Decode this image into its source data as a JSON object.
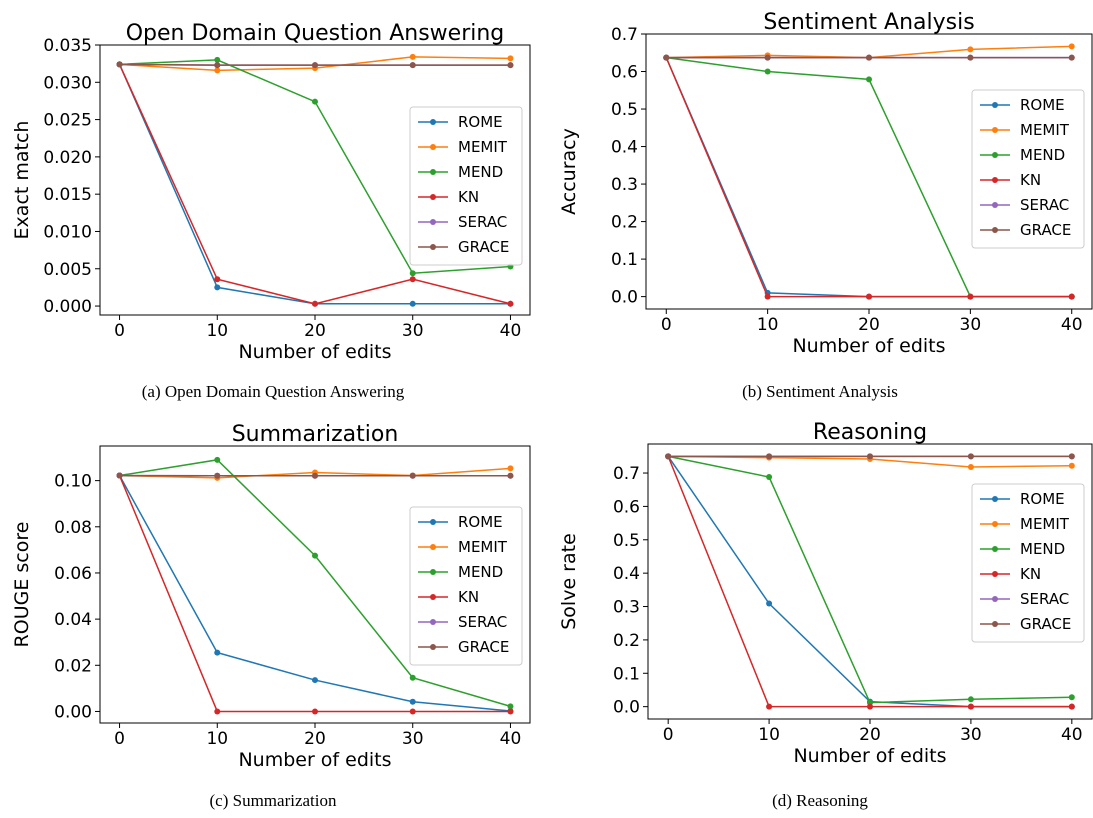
{
  "colors": {
    "ROME": "#1f77b4",
    "MEMIT": "#ff7f0e",
    "MEND": "#2ca02c",
    "KN": "#d62728",
    "SERAC": "#9467bd",
    "GRACE": "#8c564b"
  },
  "chart_data": [
    {
      "type": "line",
      "title": "Open Domain Question Answering",
      "caption": "(a) Open Domain Question Answering",
      "xlabel": "Number of edits",
      "ylabel": "Exact match",
      "x": [
        0,
        10,
        20,
        30,
        40
      ],
      "xticks": [
        "0",
        "10",
        "20",
        "30",
        "40"
      ],
      "yticks": [
        "0.000",
        "0.005",
        "0.010",
        "0.015",
        "0.020",
        "0.025",
        "0.030",
        "0.035"
      ],
      "ytick_values": [
        0,
        0.005,
        0.01,
        0.015,
        0.02,
        0.025,
        0.03,
        0.035
      ],
      "xlim": [
        -2,
        42
      ],
      "ylim": [
        -0.0012,
        0.035
      ],
      "legend": "center-right",
      "series": [
        {
          "name": "ROME",
          "values": [
            0.0324,
            0.0025,
            0.0003,
            0.0003,
            0.0003
          ]
        },
        {
          "name": "MEMIT",
          "values": [
            0.0324,
            0.0316,
            0.0319,
            0.0334,
            0.0332
          ]
        },
        {
          "name": "MEND",
          "values": [
            0.0324,
            0.033,
            0.0274,
            0.0044,
            0.0053
          ]
        },
        {
          "name": "KN",
          "values": [
            0.0324,
            0.0036,
            0.0003,
            0.0036,
            0.0003
          ]
        },
        {
          "name": "SERAC",
          "values": [
            0.0324,
            0.0323,
            0.0323,
            0.0323,
            0.0323
          ]
        },
        {
          "name": "GRACE",
          "values": [
            0.0324,
            0.0323,
            0.0323,
            0.0323,
            0.0323
          ]
        }
      ]
    },
    {
      "type": "line",
      "title": "Sentiment Analysis",
      "caption": "(b) Sentiment Analysis",
      "xlabel": "Number of edits",
      "ylabel": "Accuracy",
      "x": [
        0,
        10,
        20,
        30,
        40
      ],
      "xticks": [
        "0",
        "10",
        "20",
        "30",
        "40"
      ],
      "yticks": [
        "0.0",
        "0.1",
        "0.2",
        "0.3",
        "0.4",
        "0.5",
        "0.6",
        "0.7"
      ],
      "ytick_values": [
        0,
        0.1,
        0.2,
        0.3,
        0.4,
        0.5,
        0.6,
        0.7
      ],
      "xlim": [
        -2,
        42
      ],
      "ylim": [
        -0.033,
        0.7
      ],
      "legend": "center-right",
      "series": [
        {
          "name": "ROME",
          "values": [
            0.637,
            0.01,
            0.0,
            0.0,
            0.0
          ]
        },
        {
          "name": "MEMIT",
          "values": [
            0.637,
            0.643,
            0.637,
            0.659,
            0.667
          ]
        },
        {
          "name": "MEND",
          "values": [
            0.637,
            0.6,
            0.579,
            0.0,
            0.0
          ]
        },
        {
          "name": "KN",
          "values": [
            0.637,
            0.0,
            0.0,
            0.0,
            0.0
          ]
        },
        {
          "name": "SERAC",
          "values": [
            0.637,
            0.637,
            0.637,
            0.637,
            0.637
          ]
        },
        {
          "name": "GRACE",
          "values": [
            0.637,
            0.637,
            0.637,
            0.637,
            0.637
          ]
        }
      ]
    },
    {
      "type": "line",
      "title": "Summarization",
      "caption": "(c) Summarization",
      "xlabel": "Number of edits",
      "ylabel": "ROUGE score",
      "x": [
        0,
        10,
        20,
        30,
        40
      ],
      "xticks": [
        "0",
        "10",
        "20",
        "30",
        "40"
      ],
      "yticks": [
        "0.00",
        "0.02",
        "0.04",
        "0.06",
        "0.08",
        "0.10"
      ],
      "ytick_values": [
        0,
        0.02,
        0.04,
        0.06,
        0.08,
        0.1
      ],
      "xlim": [
        -2,
        42
      ],
      "ylim": [
        -0.005,
        0.115
      ],
      "legend": "center-right",
      "series": [
        {
          "name": "ROME",
          "values": [
            0.1022,
            0.0255,
            0.0136,
            0.0042,
            0.0002
          ]
        },
        {
          "name": "MEMIT",
          "values": [
            0.1022,
            0.1012,
            0.1035,
            0.1022,
            0.1053
          ]
        },
        {
          "name": "MEND",
          "values": [
            0.1022,
            0.109,
            0.0675,
            0.0146,
            0.0022
          ]
        },
        {
          "name": "KN",
          "values": [
            0.1022,
            0.0,
            0.0,
            0.0,
            0.0
          ]
        },
        {
          "name": "SERAC",
          "values": [
            0.1022,
            0.1021,
            0.1021,
            0.1021,
            0.1021
          ]
        },
        {
          "name": "GRACE",
          "values": [
            0.1022,
            0.1021,
            0.1021,
            0.1021,
            0.1021
          ]
        }
      ]
    },
    {
      "type": "line",
      "title": "Reasoning",
      "caption": "(d) Reasoning",
      "xlabel": "Number of edits",
      "ylabel": "Solve rate",
      "x": [
        0,
        10,
        20,
        30,
        40
      ],
      "xticks": [
        "0",
        "10",
        "20",
        "30",
        "40"
      ],
      "yticks": [
        "0.0",
        "0.1",
        "0.2",
        "0.3",
        "0.4",
        "0.5",
        "0.6",
        "0.7"
      ],
      "ytick_values": [
        0,
        0.1,
        0.2,
        0.3,
        0.4,
        0.5,
        0.6,
        0.7
      ],
      "xlim": [
        -2,
        42
      ],
      "ylim": [
        -0.037,
        0.787
      ],
      "legend": "center-right",
      "series": [
        {
          "name": "ROME",
          "values": [
            0.75,
            0.309,
            0.015,
            0.0,
            0.0
          ]
        },
        {
          "name": "MEMIT",
          "values": [
            0.75,
            0.746,
            0.742,
            0.718,
            0.722
          ]
        },
        {
          "name": "MEND",
          "values": [
            0.75,
            0.688,
            0.012,
            0.022,
            0.028
          ]
        },
        {
          "name": "KN",
          "values": [
            0.75,
            0.0,
            0.0,
            0.0,
            0.0
          ]
        },
        {
          "name": "SERAC",
          "values": [
            0.75,
            0.75,
            0.75,
            0.75,
            0.75
          ]
        },
        {
          "name": "GRACE",
          "values": [
            0.75,
            0.75,
            0.75,
            0.75,
            0.75
          ]
        }
      ]
    }
  ]
}
